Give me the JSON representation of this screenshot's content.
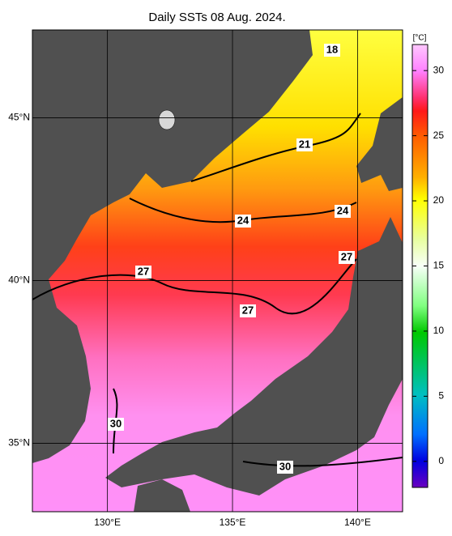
{
  "title": "Daily SSTs 08 Aug. 2024.",
  "map": {
    "lonlim": [
      127,
      141.8
    ],
    "latlim": [
      32.9,
      47.7
    ],
    "lon_ticks": [
      {
        "value": 130,
        "label": "130°E"
      },
      {
        "value": 135,
        "label": "135°E"
      },
      {
        "value": 140,
        "label": "140°E"
      }
    ],
    "lat_ticks": [
      {
        "value": 45,
        "label": "45°N"
      },
      {
        "value": 40,
        "label": "40°N"
      },
      {
        "value": 35,
        "label": "35°N"
      }
    ],
    "contour_labels": [
      18,
      21,
      24,
      24,
      27,
      27,
      27,
      30,
      30
    ]
  },
  "colorbar": {
    "unit": "[°C]",
    "lim": [
      -2,
      32
    ],
    "ticks": [
      0,
      5,
      10,
      15,
      20,
      25,
      30
    ]
  }
}
